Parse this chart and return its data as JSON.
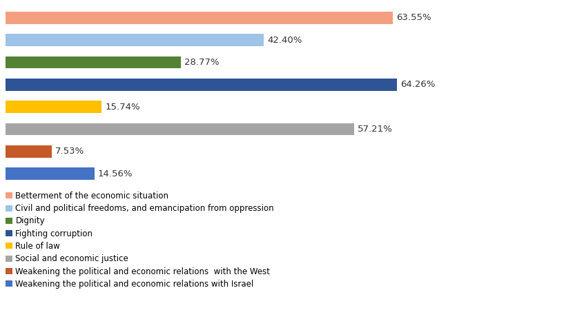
{
  "categories": [
    "Betterment of the economic situation",
    "Civil and political freedoms, and emancipation from oppression",
    "Dignity",
    "Fighting corruption",
    "Rule of law",
    "Social and economic justice",
    "Weakening the political and economic relations  with the West",
    "Weakening the political and economic relations with Israel"
  ],
  "values": [
    63.55,
    42.4,
    28.77,
    64.26,
    15.74,
    57.21,
    7.53,
    14.56
  ],
  "colors": [
    "#F4A080",
    "#9DC3E6",
    "#548235",
    "#2E5496",
    "#FFC000",
    "#A5A5A5",
    "#C55A28",
    "#4472C4"
  ],
  "xlim": [
    0,
    80
  ],
  "bar_height": 0.55,
  "background_color": "#FFFFFF",
  "label_fontsize": 9.5,
  "legend_fontsize": 8.5
}
